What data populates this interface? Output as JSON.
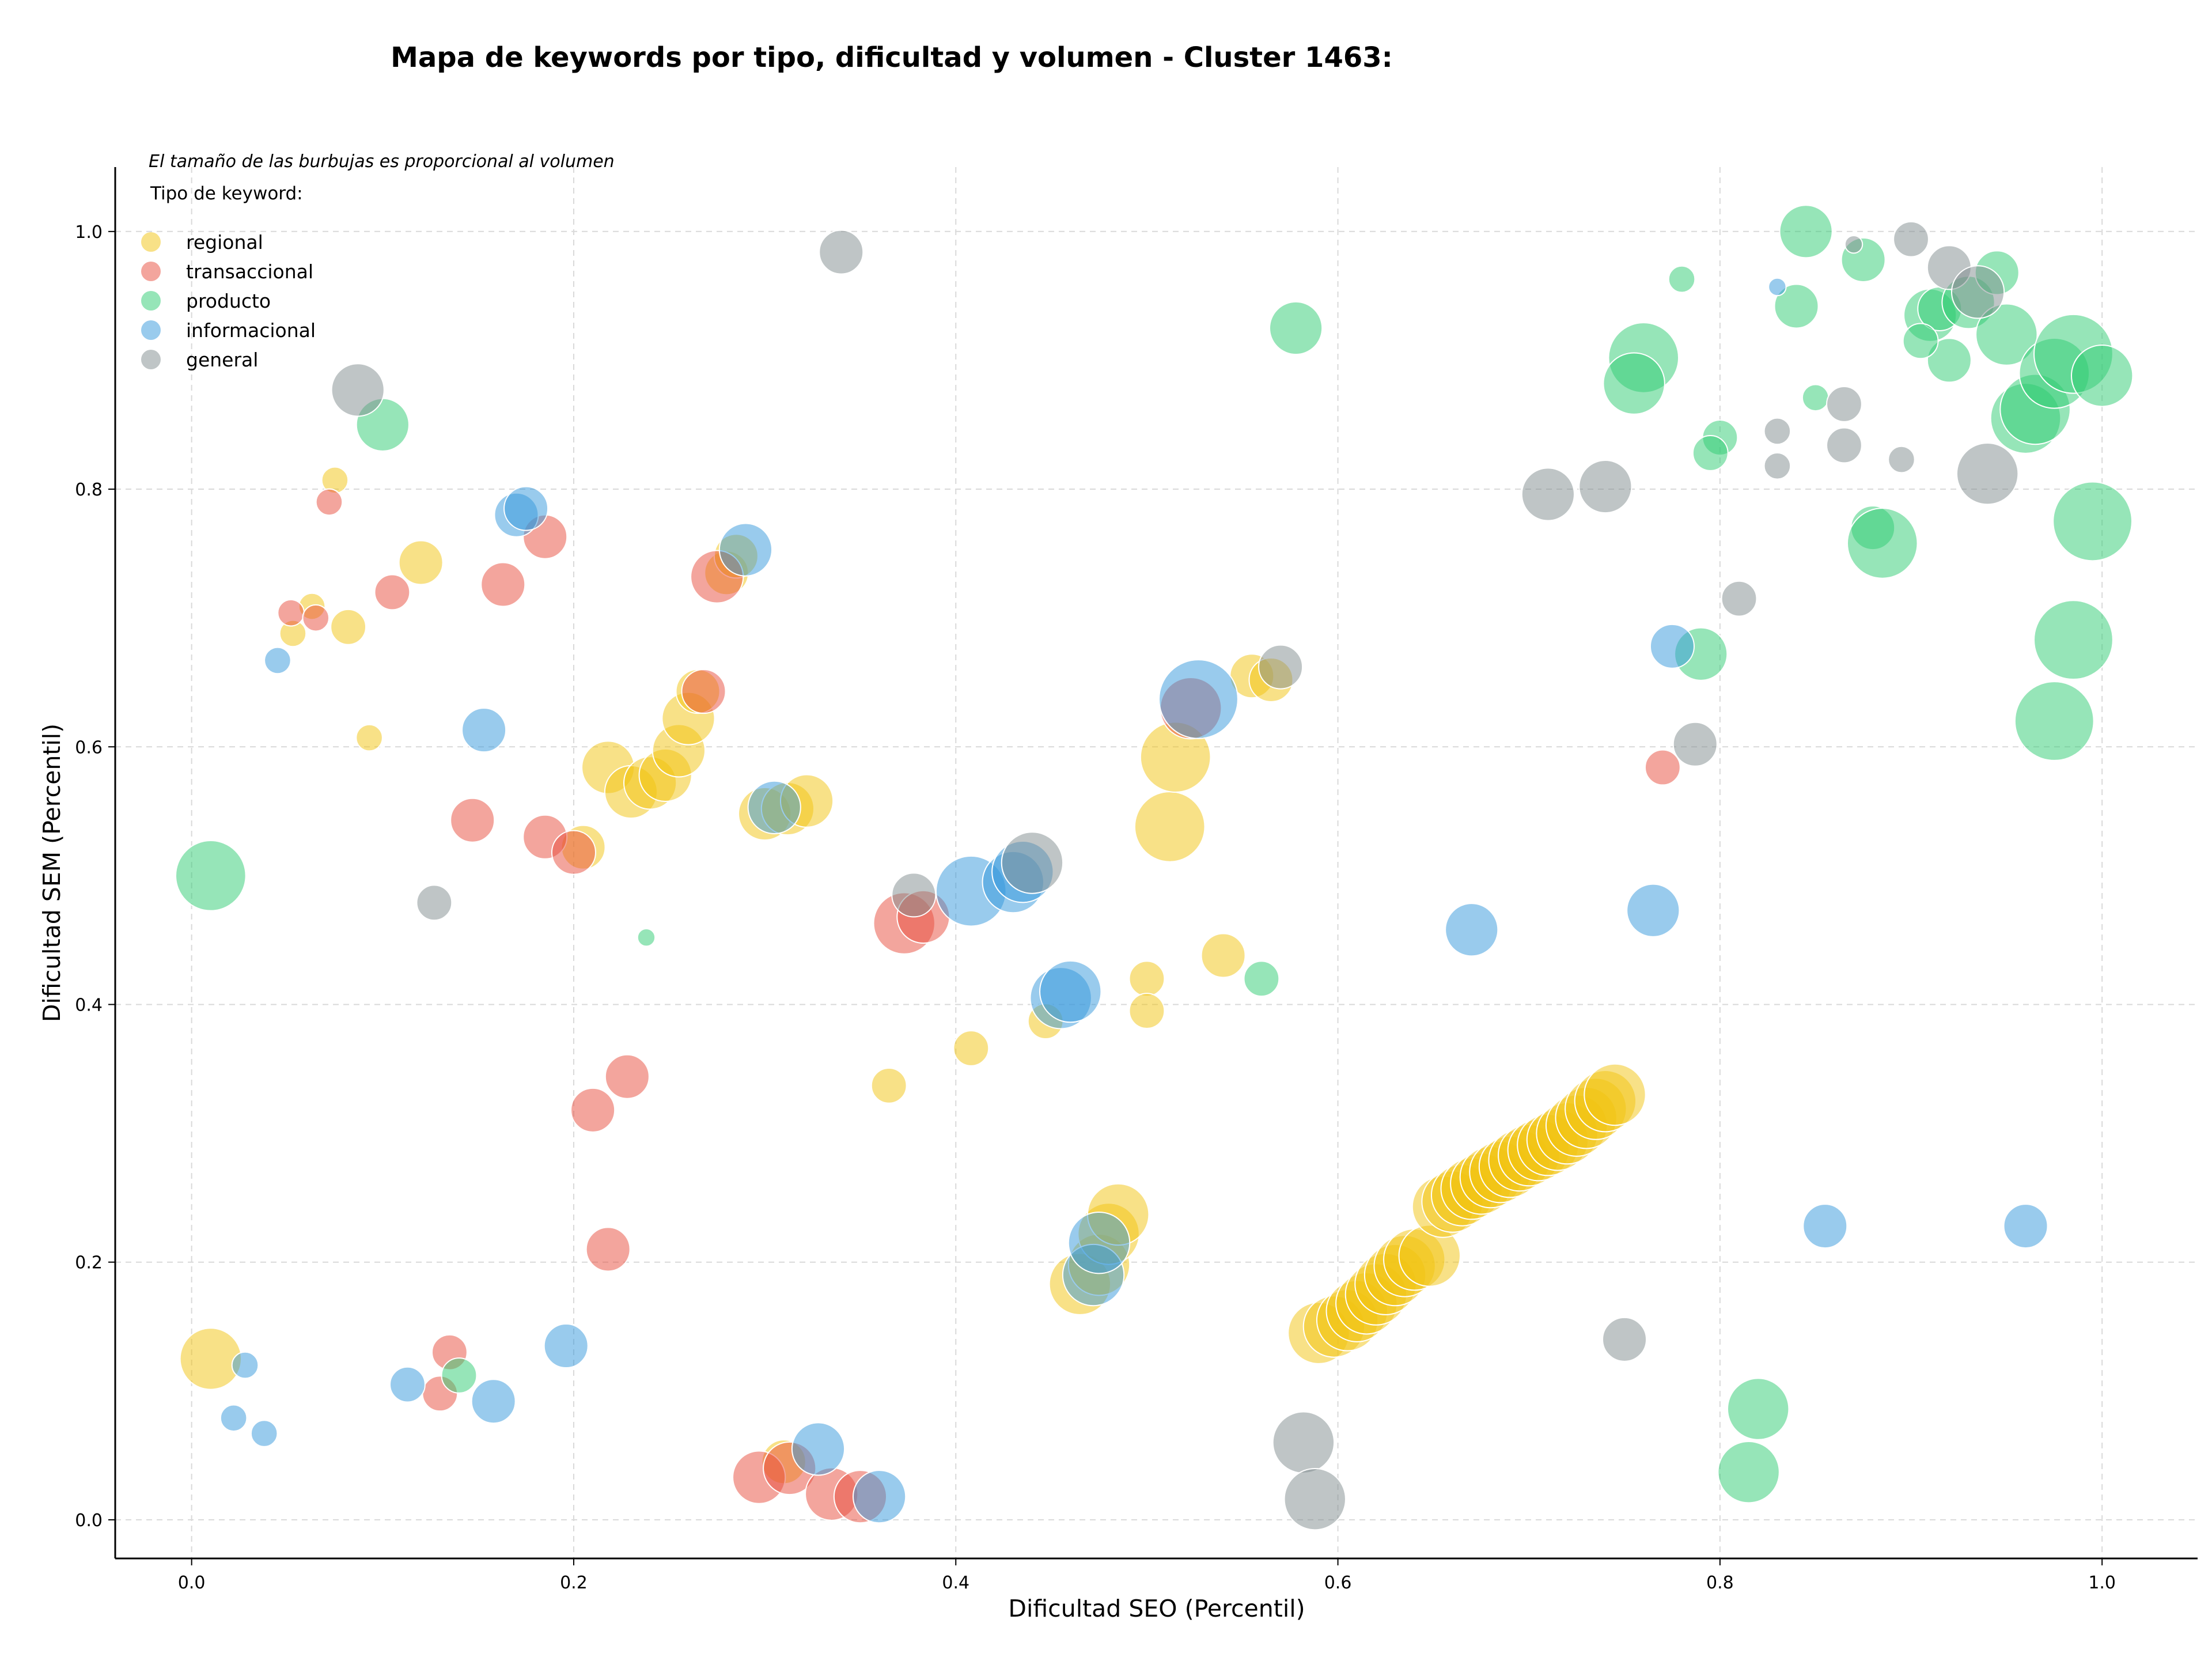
{
  "chart_data": {
    "type": "scatter",
    "title": "Mapa de keywords por tipo, dificultad y volumen - Cluster 1463:",
    "xlabel": "Dificultad SEO (Percentil)",
    "ylabel": "Dificultad SEM (Percentil)",
    "xlim": [
      -0.04,
      1.05
    ],
    "ylim": [
      -0.03,
      1.05
    ],
    "xticks": [
      "0.0",
      "0.2",
      "0.4",
      "0.6",
      "0.8",
      "1.0"
    ],
    "yticks": [
      "0.0",
      "0.2",
      "0.4",
      "0.6",
      "0.8",
      "1.0"
    ],
    "grid": true,
    "note": "El tamaño de las burbujas es proporcional al volumen",
    "legend": {
      "title": "Tipo de keyword:",
      "placement": "top-left"
    },
    "series": [
      {
        "name": "regional",
        "color": "#f1c40f",
        "points": [
          [
            0.075,
            0.807,
            3
          ],
          [
            0.063,
            0.709,
            3
          ],
          [
            0.053,
            0.688,
            3
          ],
          [
            0.082,
            0.693,
            4
          ],
          [
            0.12,
            0.743,
            5
          ],
          [
            0.093,
            0.607,
            3
          ],
          [
            0.01,
            0.125,
            7
          ],
          [
            0.205,
            0.522,
            5
          ],
          [
            0.218,
            0.584,
            6
          ],
          [
            0.23,
            0.565,
            6
          ],
          [
            0.24,
            0.572,
            6
          ],
          [
            0.248,
            0.578,
            6
          ],
          [
            0.255,
            0.597,
            6
          ],
          [
            0.26,
            0.622,
            6
          ],
          [
            0.265,
            0.643,
            5
          ],
          [
            0.28,
            0.735,
            5
          ],
          [
            0.285,
            0.748,
            5
          ],
          [
            0.3,
            0.548,
            6
          ],
          [
            0.312,
            0.552,
            6
          ],
          [
            0.322,
            0.558,
            6
          ],
          [
            0.31,
            0.045,
            5
          ],
          [
            0.365,
            0.337,
            4
          ],
          [
            0.408,
            0.366,
            4
          ],
          [
            0.447,
            0.387,
            4
          ],
          [
            0.5,
            0.42,
            4
          ],
          [
            0.5,
            0.395,
            4
          ],
          [
            0.54,
            0.438,
            5
          ],
          [
            0.512,
            0.538,
            8
          ],
          [
            0.515,
            0.592,
            8
          ],
          [
            0.555,
            0.655,
            5
          ],
          [
            0.565,
            0.652,
            5
          ],
          [
            0.465,
            0.183,
            7
          ],
          [
            0.475,
            0.198,
            7
          ],
          [
            0.48,
            0.222,
            7
          ],
          [
            0.485,
            0.237,
            7
          ],
          [
            0.59,
            0.145,
            7
          ],
          [
            0.598,
            0.15,
            7
          ],
          [
            0.605,
            0.155,
            7
          ],
          [
            0.61,
            0.162,
            7
          ],
          [
            0.615,
            0.168,
            7
          ],
          [
            0.62,
            0.175,
            7
          ],
          [
            0.625,
            0.183,
            7
          ],
          [
            0.63,
            0.19,
            7
          ],
          [
            0.635,
            0.197,
            7
          ],
          [
            0.64,
            0.202,
            7
          ],
          [
            0.648,
            0.205,
            7
          ],
          [
            0.655,
            0.243,
            7
          ],
          [
            0.66,
            0.247,
            7
          ],
          [
            0.665,
            0.252,
            7
          ],
          [
            0.67,
            0.257,
            7
          ],
          [
            0.675,
            0.261,
            7
          ],
          [
            0.68,
            0.266,
            7
          ],
          [
            0.685,
            0.27,
            7
          ],
          [
            0.69,
            0.274,
            7
          ],
          [
            0.695,
            0.279,
            7
          ],
          [
            0.7,
            0.283,
            7
          ],
          [
            0.705,
            0.287,
            7
          ],
          [
            0.71,
            0.291,
            7
          ],
          [
            0.715,
            0.295,
            7
          ],
          [
            0.72,
            0.3,
            7
          ],
          [
            0.725,
            0.306,
            7
          ],
          [
            0.73,
            0.312,
            7
          ],
          [
            0.735,
            0.319,
            7
          ],
          [
            0.74,
            0.325,
            7
          ],
          [
            0.745,
            0.33,
            7
          ]
        ]
      },
      {
        "name": "transaccional",
        "color": "#e74c3c",
        "points": [
          [
            0.072,
            0.79,
            3
          ],
          [
            0.052,
            0.704,
            3
          ],
          [
            0.065,
            0.7,
            3
          ],
          [
            0.105,
            0.72,
            4
          ],
          [
            0.163,
            0.726,
            5
          ],
          [
            0.185,
            0.763,
            5
          ],
          [
            0.147,
            0.543,
            5
          ],
          [
            0.185,
            0.53,
            5
          ],
          [
            0.2,
            0.518,
            5
          ],
          [
            0.268,
            0.643,
            5
          ],
          [
            0.275,
            0.732,
            6
          ],
          [
            0.228,
            0.344,
            5
          ],
          [
            0.21,
            0.318,
            5
          ],
          [
            0.218,
            0.21,
            5
          ],
          [
            0.135,
            0.13,
            4
          ],
          [
            0.13,
            0.098,
            4
          ],
          [
            0.297,
            0.033,
            6
          ],
          [
            0.313,
            0.04,
            6
          ],
          [
            0.335,
            0.02,
            6
          ],
          [
            0.35,
            0.018,
            6
          ],
          [
            0.373,
            0.463,
            7
          ],
          [
            0.383,
            0.468,
            6
          ],
          [
            0.523,
            0.63,
            7
          ],
          [
            0.77,
            0.584,
            4
          ]
        ]
      },
      {
        "name": "producto",
        "color": "#2ecc71",
        "points": [
          [
            0.1,
            0.85,
            6
          ],
          [
            0.01,
            0.5,
            8
          ],
          [
            0.238,
            0.452,
            2
          ],
          [
            0.14,
            0.112,
            4
          ],
          [
            0.578,
            0.925,
            6
          ],
          [
            0.56,
            0.42,
            4
          ],
          [
            0.79,
            0.672,
            6
          ],
          [
            0.82,
            0.086,
            7
          ],
          [
            0.815,
            0.037,
            7
          ],
          [
            0.78,
            0.963,
            3
          ],
          [
            0.845,
            1.0,
            6
          ],
          [
            0.84,
            0.942,
            5
          ],
          [
            0.85,
            0.871,
            3
          ],
          [
            0.875,
            0.978,
            5
          ],
          [
            0.8,
            0.84,
            4
          ],
          [
            0.795,
            0.828,
            4
          ],
          [
            0.88,
            0.77,
            5
          ],
          [
            0.885,
            0.758,
            8
          ],
          [
            0.76,
            0.902,
            8
          ],
          [
            0.755,
            0.882,
            7
          ],
          [
            0.91,
            0.935,
            6
          ],
          [
            0.915,
            0.94,
            5
          ],
          [
            0.92,
            0.9,
            5
          ],
          [
            0.905,
            0.915,
            4
          ],
          [
            0.93,
            0.945,
            6
          ],
          [
            0.945,
            0.968,
            5
          ],
          [
            0.95,
            0.92,
            7
          ],
          [
            0.96,
            0.855,
            8
          ],
          [
            0.965,
            0.862,
            8
          ],
          [
            0.975,
            0.89,
            8
          ],
          [
            0.985,
            0.905,
            9
          ],
          [
            1.0,
            0.888,
            7
          ],
          [
            0.995,
            0.775,
            9
          ],
          [
            0.985,
            0.683,
            9
          ],
          [
            0.975,
            0.62,
            9
          ]
        ]
      },
      {
        "name": "informacional",
        "color": "#3498db",
        "points": [
          [
            0.045,
            0.667,
            3
          ],
          [
            0.17,
            0.78,
            5
          ],
          [
            0.175,
            0.785,
            5
          ],
          [
            0.153,
            0.613,
            5
          ],
          [
            0.29,
            0.753,
            6
          ],
          [
            0.305,
            0.553,
            6
          ],
          [
            0.196,
            0.135,
            5
          ],
          [
            0.158,
            0.092,
            5
          ],
          [
            0.113,
            0.105,
            4
          ],
          [
            0.028,
            0.12,
            3
          ],
          [
            0.022,
            0.079,
            3
          ],
          [
            0.038,
            0.067,
            3
          ],
          [
            0.328,
            0.055,
            6
          ],
          [
            0.36,
            0.018,
            6
          ],
          [
            0.408,
            0.488,
            8
          ],
          [
            0.43,
            0.495,
            7
          ],
          [
            0.435,
            0.503,
            7
          ],
          [
            0.455,
            0.405,
            7
          ],
          [
            0.46,
            0.41,
            7
          ],
          [
            0.472,
            0.19,
            7
          ],
          [
            0.475,
            0.215,
            7
          ],
          [
            0.527,
            0.637,
            9
          ],
          [
            0.67,
            0.458,
            6
          ],
          [
            0.765,
            0.473,
            6
          ],
          [
            0.775,
            0.678,
            5
          ],
          [
            0.83,
            0.957,
            2
          ],
          [
            0.855,
            0.228,
            5
          ],
          [
            0.96,
            0.228,
            5
          ]
        ]
      },
      {
        "name": "general",
        "color": "#7f8c8d",
        "points": [
          [
            0.087,
            0.877,
            6
          ],
          [
            0.127,
            0.479,
            4
          ],
          [
            0.34,
            0.984,
            5
          ],
          [
            0.378,
            0.485,
            5
          ],
          [
            0.44,
            0.51,
            7
          ],
          [
            0.57,
            0.662,
            5
          ],
          [
            0.582,
            0.06,
            7
          ],
          [
            0.588,
            0.016,
            7
          ],
          [
            0.71,
            0.796,
            6
          ],
          [
            0.74,
            0.802,
            6
          ],
          [
            0.75,
            0.14,
            5
          ],
          [
            0.787,
            0.602,
            5
          ],
          [
            0.81,
            0.715,
            4
          ],
          [
            0.83,
            0.845,
            3
          ],
          [
            0.83,
            0.818,
            3
          ],
          [
            0.865,
            0.866,
            4
          ],
          [
            0.865,
            0.834,
            4
          ],
          [
            0.87,
            0.99,
            2
          ],
          [
            0.895,
            0.823,
            3
          ],
          [
            0.9,
            0.994,
            4
          ],
          [
            0.92,
            0.972,
            5
          ],
          [
            0.935,
            0.953,
            6
          ],
          [
            0.94,
            0.812,
            7
          ]
        ]
      }
    ]
  }
}
